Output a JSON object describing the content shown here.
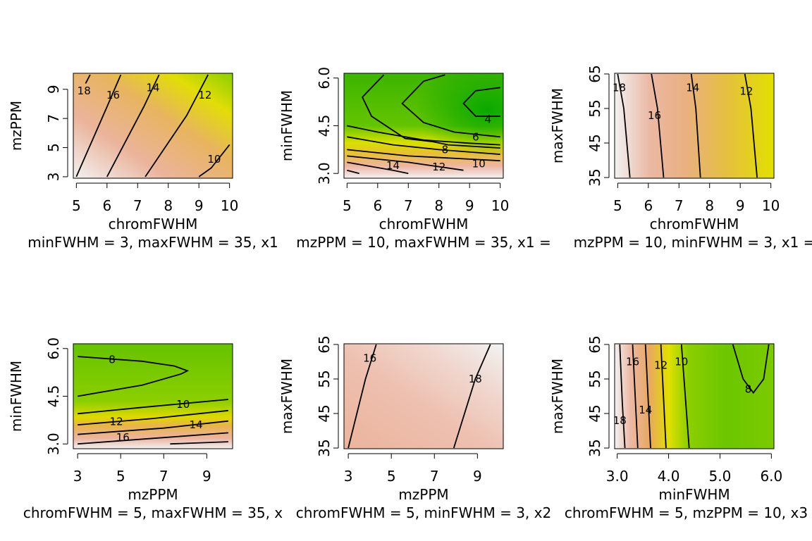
{
  "chart_data": [
    {
      "type": "heatmap",
      "xlabel": "chromFWHM",
      "ylabel": "mzPPM",
      "xlim": [
        4.9,
        10.1
      ],
      "ylim": [
        2.9,
        10.1
      ],
      "x_ticks": [
        5,
        6,
        7,
        8,
        9,
        10
      ],
      "y_ticks": [
        3,
        5,
        7,
        9
      ],
      "slice_label": "minFWHM = 3, maxFWHM = 35, x1",
      "color_scale": {
        "low": "#00a600",
        "mid": "#e6e600",
        "high": "#f2f2f2"
      },
      "contours": [
        {
          "level": "18",
          "points": [
            [
              5.3,
              9.4
            ],
            [
              5.45,
              10
            ]
          ],
          "label_at": [
            5.25,
            8.9
          ]
        },
        {
          "level": "16",
          "points": [
            [
              5,
              3
            ],
            [
              6,
              7.8
            ],
            [
              6.45,
              10
            ]
          ],
          "label_at": [
            6.2,
            8.6
          ]
        },
        {
          "level": "14",
          "points": [
            [
              6,
              3
            ],
            [
              7.2,
              7.8
            ],
            [
              7.7,
              10
            ]
          ],
          "label_at": [
            7.5,
            9.1
          ]
        },
        {
          "level": "12",
          "points": [
            [
              7.25,
              3
            ],
            [
              8.6,
              7.2
            ],
            [
              9.3,
              10
            ]
          ],
          "label_at": [
            9.2,
            8.6
          ]
        },
        {
          "level": "10",
          "points": [
            [
              9,
              3
            ],
            [
              9.4,
              3.6
            ],
            [
              10,
              5.2
            ]
          ],
          "label_at": [
            9.5,
            4.2
          ]
        }
      ]
    },
    {
      "type": "heatmap",
      "xlabel": "chromFWHM",
      "ylabel": "minFWHM",
      "xlim": [
        4.9,
        10.1
      ],
      "ylim": [
        2.85,
        6.15
      ],
      "x_ticks": [
        5,
        6,
        7,
        8,
        9,
        10
      ],
      "y_ticks": [
        "3.0",
        "4.5",
        "6.0"
      ],
      "slice_label": "mzPPM = 10, maxFWHM = 35, x1 =",
      "color_scale": {
        "low": "#00a600",
        "mid": "#e6e600",
        "high": "#f2f2f2"
      },
      "contours": [
        {
          "level": "",
          "points": [
            [
              6.2,
              6.1
            ],
            [
              5.5,
              5.4
            ],
            [
              5.8,
              4.8
            ],
            [
              6.9,
              4.1
            ],
            [
              7.8,
              4.0
            ],
            [
              8.3,
              3.9
            ],
            [
              10,
              3.8
            ]
          ],
          "label_at": null
        },
        {
          "level": "",
          "points": [
            [
              8.2,
              6.1
            ],
            [
              7.5,
              5.9
            ],
            [
              6.8,
              5.2
            ],
            [
              7.5,
              4.6
            ],
            [
              8.5,
              4.3
            ],
            [
              10,
              4.15
            ]
          ],
          "label_at": null
        },
        {
          "level": "4",
          "points": [
            [
              10,
              5.7
            ],
            [
              9.2,
              5.6
            ],
            [
              8.8,
              5.2
            ],
            [
              9.2,
              4.8
            ],
            [
              10,
              4.8
            ]
          ],
          "label_at": [
            9.6,
            4.7
          ]
        },
        {
          "level": "6",
          "points": [
            [
              5,
              4.5
            ],
            [
              6,
              4.3
            ],
            [
              7.5,
              4.05
            ],
            [
              9,
              3.95
            ],
            [
              10,
              3.9
            ]
          ],
          "label_at": [
            9.2,
            4.15
          ]
        },
        {
          "level": "8",
          "points": [
            [
              5,
              4.15
            ],
            [
              6.5,
              3.9
            ],
            [
              8,
              3.75
            ],
            [
              10,
              3.6
            ]
          ],
          "label_at": [
            8.2,
            3.75
          ]
        },
        {
          "level": "10",
          "points": [
            [
              5,
              3.75
            ],
            [
              7,
              3.55
            ],
            [
              9,
              3.45
            ],
            [
              10,
              3.4
            ]
          ],
          "label_at": [
            9.3,
            3.3
          ]
        },
        {
          "level": "12",
          "points": [
            [
              5,
              3.55
            ],
            [
              7,
              3.35
            ],
            [
              8.8,
              3.1
            ]
          ],
          "label_at": [
            8.0,
            3.2
          ]
        },
        {
          "level": "14",
          "points": [
            [
              5,
              3.35
            ],
            [
              6.5,
              3.1
            ],
            [
              7.0,
              3.0
            ]
          ],
          "label_at": [
            6.5,
            3.25
          ]
        },
        {
          "level": "",
          "points": [
            [
              5,
              3.1
            ],
            [
              5.4,
              3.0
            ]
          ],
          "label_at": null
        }
      ]
    },
    {
      "type": "heatmap",
      "xlabel": "chromFWHM",
      "ylabel": "maxFWHM",
      "xlim": [
        4.9,
        10.1
      ],
      "ylim": [
        34.8,
        65.2
      ],
      "x_ticks": [
        5,
        6,
        7,
        8,
        9,
        10
      ],
      "y_ticks": [
        35,
        45,
        55,
        65
      ],
      "slice_label": "mzPPM = 10, minFWHM = 3, x1 =",
      "color_scale": {
        "low": "#00a600",
        "mid": "#e6e600",
        "high": "#f2f2f2"
      },
      "contours": [
        {
          "level": "18",
          "points": [
            [
              5,
              65
            ],
            [
              5.2,
              55
            ],
            [
              5.4,
              35
            ]
          ],
          "label_at": [
            5.05,
            61
          ]
        },
        {
          "level": "16",
          "points": [
            [
              6.1,
              65
            ],
            [
              6.3,
              55
            ],
            [
              6.5,
              35
            ]
          ],
          "label_at": [
            6.2,
            53
          ]
        },
        {
          "level": "14",
          "points": [
            [
              7.4,
              65
            ],
            [
              7.55,
              55
            ],
            [
              7.7,
              35
            ]
          ],
          "label_at": [
            7.45,
            61
          ]
        },
        {
          "level": "12",
          "points": [
            [
              9.15,
              65
            ],
            [
              9.35,
              55
            ],
            [
              9.55,
              35
            ]
          ],
          "label_at": [
            9.2,
            60
          ]
        }
      ]
    },
    {
      "type": "heatmap",
      "xlabel": "mzPPM",
      "ylabel": "minFWHM",
      "xlim": [
        2.8,
        10.2
      ],
      "ylim": [
        2.85,
        6.15
      ],
      "x_ticks": [
        3,
        5,
        7,
        9
      ],
      "y_ticks": [
        "3.0",
        "4.5",
        "6.0"
      ],
      "slice_label": "chromFWHM = 5, maxFWHM = 35, x",
      "color_scale": {
        "low": "#00a600",
        "mid": "#e6e600",
        "high": "#f2f2f2"
      },
      "contours": [
        {
          "level": "8",
          "points": [
            [
              3,
              5.75
            ],
            [
              6,
              5.6
            ],
            [
              7.5,
              5.45
            ],
            [
              8.1,
              5.3
            ],
            [
              7.8,
              5.2
            ],
            [
              6,
              4.85
            ],
            [
              3,
              4.5
            ]
          ],
          "label_at": [
            4.6,
            5.65
          ]
        },
        {
          "level": "10",
          "points": [
            [
              3,
              3.95
            ],
            [
              6,
              4.15
            ],
            [
              10,
              4.4
            ]
          ],
          "label_at": [
            7.9,
            4.25
          ]
        },
        {
          "level": "12",
          "points": [
            [
              3,
              3.6
            ],
            [
              6.5,
              3.8
            ],
            [
              10,
              4.05
            ]
          ],
          "label_at": [
            4.8,
            3.7
          ]
        },
        {
          "level": "14",
          "points": [
            [
              3,
              3.3
            ],
            [
              7,
              3.5
            ],
            [
              10,
              3.72
            ]
          ],
          "label_at": [
            8.5,
            3.6
          ]
        },
        {
          "level": "16",
          "points": [
            [
              3,
              3.0
            ],
            [
              7,
              3.2
            ],
            [
              10,
              3.35
            ]
          ],
          "label_at": [
            5.1,
            3.2
          ]
        },
        {
          "level": "",
          "points": [
            [
              7.3,
              3.0
            ],
            [
              10,
              3.07
            ]
          ],
          "label_at": null
        }
      ]
    },
    {
      "type": "heatmap",
      "xlabel": "mzPPM",
      "ylabel": "maxFWHM",
      "xlim": [
        2.8,
        10.2
      ],
      "ylim": [
        34.8,
        65.2
      ],
      "x_ticks": [
        3,
        5,
        7,
        9
      ],
      "y_ticks": [
        35,
        45,
        55,
        65
      ],
      "slice_label": "chromFWHM = 5, minFWHM = 3, x2",
      "color_scale": {
        "low": "#00a600",
        "mid": "#e6e600",
        "high": "#f2f2f2"
      },
      "contours": [
        {
          "level": "16",
          "points": [
            [
              3,
              35
            ],
            [
              3.8,
              55
            ],
            [
              4.3,
              65
            ]
          ],
          "label_at": [
            4.0,
            61
          ]
        },
        {
          "level": "18",
          "points": [
            [
              7.9,
              35
            ],
            [
              8.9,
              55
            ],
            [
              9.6,
              65
            ]
          ],
          "label_at": [
            8.9,
            55
          ]
        }
      ]
    },
    {
      "type": "heatmap",
      "xlabel": "minFWHM",
      "ylabel": "maxFWHM",
      "xlim": [
        2.95,
        6.05
      ],
      "ylim": [
        34.8,
        65.2
      ],
      "x_ticks": [
        "3.0",
        "4.0",
        "5.0",
        "6.0"
      ],
      "y_ticks": [
        35,
        45,
        55,
        65
      ],
      "slice_label": "chromFWHM = 5, mzPPM = 10, x3 =",
      "color_scale": {
        "low": "#00a600",
        "mid": "#e6e600",
        "high": "#f2f2f2"
      },
      "contours": [
        {
          "level": "18",
          "points": [
            [
              3.05,
              65
            ],
            [
              3.1,
              48
            ],
            [
              3.15,
              35
            ]
          ],
          "label_at": [
            3.05,
            43
          ]
        },
        {
          "level": "16",
          "points": [
            [
              3.3,
              65
            ],
            [
              3.4,
              35
            ]
          ],
          "label_at": [
            3.3,
            60
          ]
        },
        {
          "level": "14",
          "points": [
            [
              3.55,
              65
            ],
            [
              3.65,
              35
            ]
          ],
          "label_at": [
            3.55,
            46
          ]
        },
        {
          "level": "12",
          "points": [
            [
              3.85,
              65
            ],
            [
              3.95,
              35
            ]
          ],
          "label_at": [
            3.85,
            59
          ]
        },
        {
          "level": "10",
          "points": [
            [
              4.25,
              65
            ],
            [
              4.4,
              35
            ]
          ],
          "label_at": [
            4.25,
            60
          ]
        },
        {
          "level": "8",
          "points": [
            [
              5.25,
              65
            ],
            [
              5.45,
              55
            ],
            [
              5.65,
              51
            ],
            [
              5.85,
              55
            ],
            [
              5.95,
              65
            ]
          ],
          "label_at": [
            5.55,
            52
          ]
        }
      ]
    }
  ]
}
